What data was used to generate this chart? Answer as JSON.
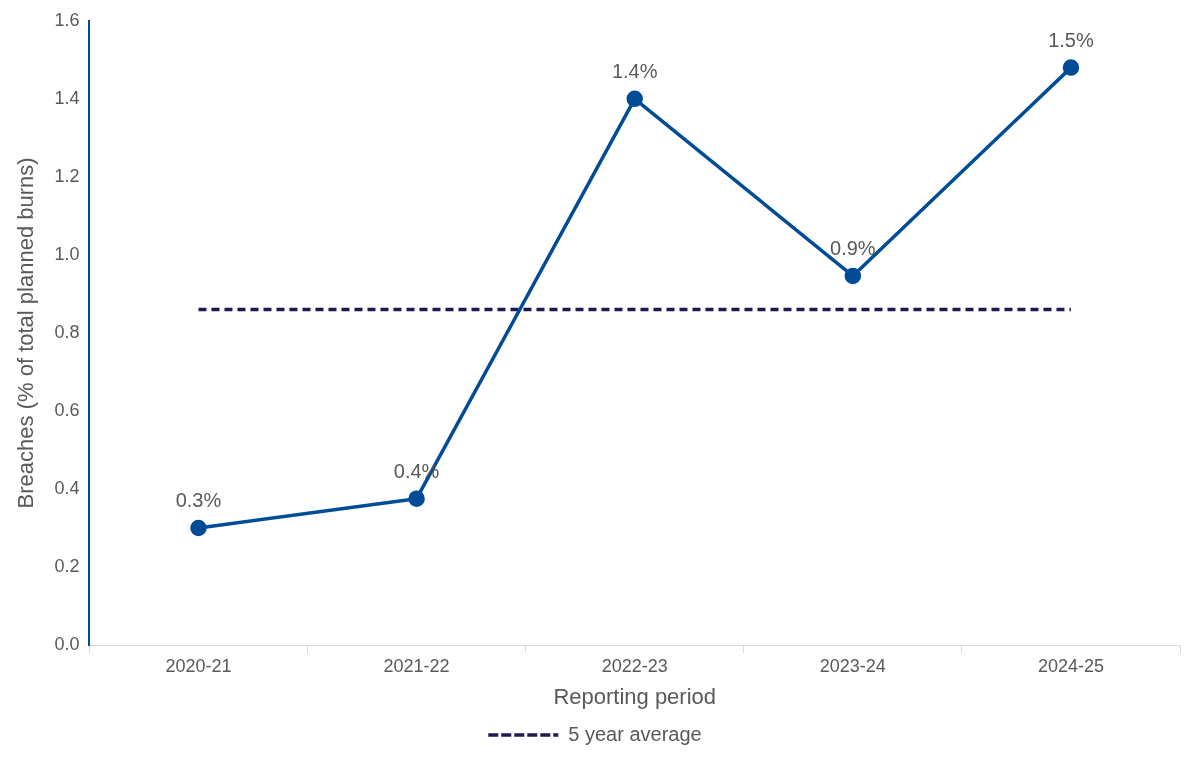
{
  "chart_data": {
    "type": "line",
    "xlabel": "Reporting period",
    "ylabel": "Breaches (% of total planned burns)",
    "categories": [
      "2020-21",
      "2021-22",
      "2022-23",
      "2023-24",
      "2024-25"
    ],
    "series": [
      {
        "color": "#004c97",
        "values": [
          0.3,
          0.375,
          1.4,
          0.946,
          1.48
        ],
        "value_labels": [
          "0.3%",
          "0.4%",
          "1.4%",
          "0.9%",
          "1.5%"
        ],
        "marker": "circle",
        "line_style": "solid"
      },
      {
        "name": "5 year average",
        "color": "#1d1a4f",
        "values": [
          0.86,
          0.86,
          0.86,
          0.86,
          0.86
        ],
        "marker": "none",
        "line_style": "dashed"
      }
    ],
    "ylim": [
      0,
      1.6
    ],
    "yticks": [
      {
        "value": 0,
        "label": "0.0"
      },
      0.2,
      0.4,
      0.6,
      0.8,
      {
        "value": 1,
        "label": "1.0"
      },
      1.2,
      1.4,
      1.6
    ],
    "grid": false,
    "legend": "bottom"
  }
}
